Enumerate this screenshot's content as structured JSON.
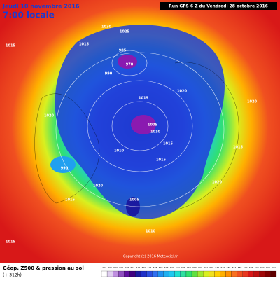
{
  "header": {
    "valid_date": "Jeudi 10 novembre 2016",
    "local_time": "7:00 locale",
    "run": "Run GFS 6 Z du Vendredi 28 octobre 2016"
  },
  "map": {
    "pressure_labels": [
      "1015",
      "1030",
      "1025",
      "1015",
      "985",
      "970",
      "990",
      "1015",
      "1020",
      "1005",
      "1010",
      "1015",
      "990",
      "1020",
      "1010",
      "1015",
      "1005",
      "1020",
      "1020",
      "1015",
      "1020",
      "1010",
      "1015",
      "1015"
    ],
    "copyright": "Copyright (c) 2016 Meteociel.fr"
  },
  "footer": {
    "title": "Géop. Z500 & pression au sol",
    "lead_time": "(+ 312h)",
    "scale_labels": [
      "492",
      "496",
      "500",
      "504",
      "508",
      "512",
      "516",
      "520",
      "524",
      "528",
      "532",
      "536",
      "540",
      "544",
      "548",
      "552",
      "556",
      "560",
      "564",
      "568",
      "572",
      "576",
      "580",
      "584",
      "588",
      "592",
      "596",
      "600",
      "604",
      "608",
      "612"
    ]
  }
}
